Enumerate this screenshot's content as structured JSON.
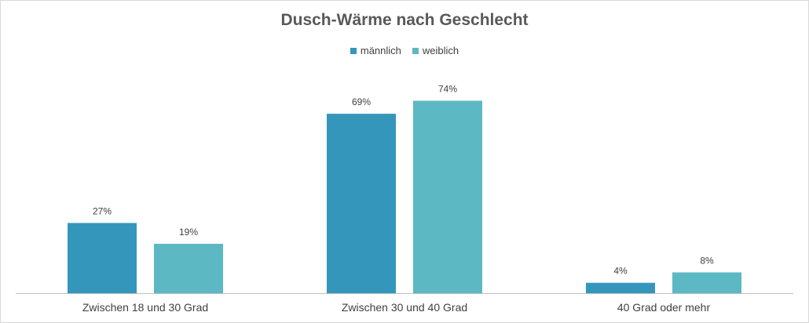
{
  "chart_data": {
    "type": "bar",
    "title": "Dusch-Wärme nach Geschlecht",
    "categories": [
      "Zwischen 18 und 30 Grad",
      "Zwischen 30 und 40 Grad",
      "40 Grad oder mehr"
    ],
    "series": [
      {
        "name": "männlich",
        "values": [
          27,
          69,
          4
        ],
        "labels": [
          "27%",
          "69%",
          "4%"
        ],
        "color": "#3596bc"
      },
      {
        "name": "weiblich",
        "values": [
          19,
          74,
          8
        ],
        "labels": [
          "19%",
          "74%",
          "8%"
        ],
        "color": "#5cb8c3"
      }
    ],
    "ylim": [
      0,
      85
    ],
    "grid": false,
    "legend": "top-center"
  }
}
